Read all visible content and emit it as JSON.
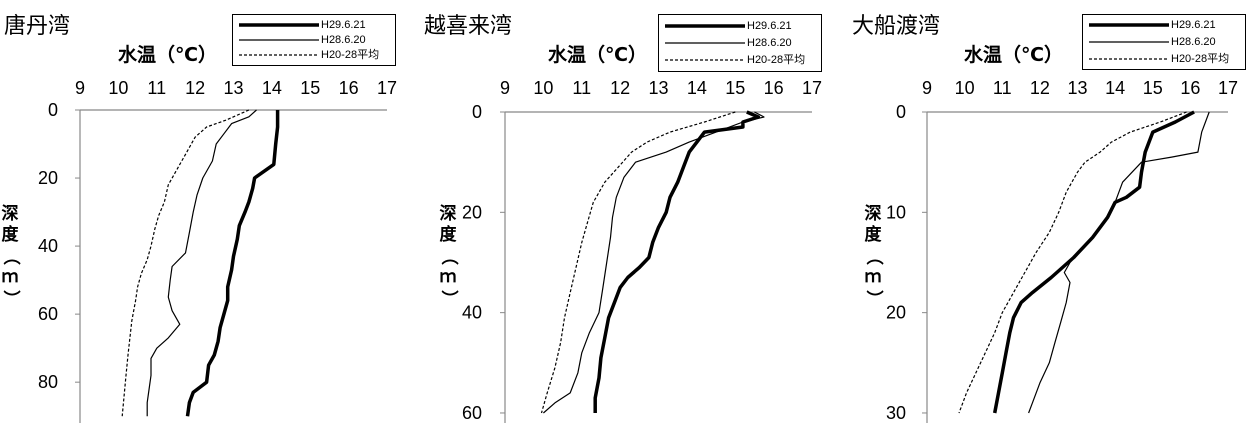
{
  "chart_data": [
    {
      "type": "line",
      "title": "唐丹湾",
      "xlabel": "水温（℃）",
      "ylabel": "深度（ｍ）",
      "xlim": [
        9,
        17
      ],
      "ylim": [
        0,
        90
      ],
      "y_inverted": true,
      "x_ticks": [
        "9",
        "10",
        "11",
        "12",
        "13",
        "14",
        "15",
        "16",
        "17"
      ],
      "y_ticks": [
        "0",
        "20",
        "40",
        "60",
        "80"
      ],
      "legend": [
        "H29.6.21",
        "H28.6.20",
        "H20-28平均"
      ],
      "legend_position": "top-right",
      "series": [
        {
          "name": "H29.6.21",
          "style": "thick",
          "points": [
            [
              14.15,
              0
            ],
            [
              14.15,
              5
            ],
            [
              14.1,
              10
            ],
            [
              14.05,
              16
            ],
            [
              13.55,
              20
            ],
            [
              13.5,
              23
            ],
            [
              13.4,
              27
            ],
            [
              13.3,
              30
            ],
            [
              13.15,
              34
            ],
            [
              13.1,
              38
            ],
            [
              13.0,
              43
            ],
            [
              12.95,
              47
            ],
            [
              12.85,
              52
            ],
            [
              12.85,
              56
            ],
            [
              12.75,
              60
            ],
            [
              12.65,
              64
            ],
            [
              12.6,
              68
            ],
            [
              12.5,
              72
            ],
            [
              12.35,
              75
            ],
            [
              12.3,
              80
            ],
            [
              11.95,
              83
            ],
            [
              11.85,
              86
            ],
            [
              11.8,
              90
            ]
          ]
        },
        {
          "name": "H28.6.20",
          "style": "thin",
          "points": [
            [
              13.6,
              0
            ],
            [
              13.4,
              2
            ],
            [
              12.95,
              4
            ],
            [
              12.75,
              7
            ],
            [
              12.55,
              10
            ],
            [
              12.45,
              15
            ],
            [
              12.2,
              20
            ],
            [
              12.05,
              25
            ],
            [
              11.95,
              30
            ],
            [
              11.85,
              36
            ],
            [
              11.75,
              42
            ],
            [
              11.4,
              46
            ],
            [
              11.35,
              50
            ],
            [
              11.3,
              55
            ],
            [
              11.4,
              59
            ],
            [
              11.6,
              63
            ],
            [
              11.3,
              67
            ],
            [
              11.0,
              70
            ],
            [
              10.85,
              73
            ],
            [
              10.85,
              78
            ],
            [
              10.8,
              82
            ],
            [
              10.75,
              86
            ],
            [
              10.75,
              90
            ]
          ]
        },
        {
          "name": "H20-28平均",
          "style": "dashed",
          "points": [
            [
              13.4,
              0
            ],
            [
              12.8,
              3
            ],
            [
              12.3,
              5
            ],
            [
              12.0,
              8
            ],
            [
              11.8,
              12
            ],
            [
              11.55,
              17
            ],
            [
              11.3,
              22
            ],
            [
              11.2,
              27
            ],
            [
              11.05,
              31
            ],
            [
              10.95,
              35
            ],
            [
              10.85,
              40
            ],
            [
              10.75,
              44
            ],
            [
              10.6,
              48
            ],
            [
              10.5,
              52
            ],
            [
              10.45,
              56
            ],
            [
              10.35,
              62
            ],
            [
              10.3,
              67
            ],
            [
              10.25,
              72
            ],
            [
              10.2,
              78
            ],
            [
              10.15,
              84
            ],
            [
              10.1,
              90
            ]
          ]
        }
      ]
    },
    {
      "type": "line",
      "title": "越喜来湾",
      "xlabel": "水温（℃）",
      "ylabel": "深度（ｍ）",
      "xlim": [
        9,
        17
      ],
      "ylim": [
        0,
        60
      ],
      "y_inverted": true,
      "x_ticks": [
        "9",
        "10",
        "11",
        "12",
        "13",
        "14",
        "15",
        "16",
        "17"
      ],
      "y_ticks": [
        "0",
        "20",
        "40",
        "60"
      ],
      "legend": [
        "H29.6.21",
        "H28.6.20",
        "H20-28平均"
      ],
      "legend_position": "top-right",
      "series": [
        {
          "name": "H29.6.21",
          "style": "thick",
          "points": [
            [
              15.3,
              0
            ],
            [
              15.6,
              1
            ],
            [
              15.2,
              2
            ],
            [
              15.2,
              3
            ],
            [
              14.2,
              4
            ],
            [
              14.0,
              6
            ],
            [
              13.8,
              8
            ],
            [
              13.65,
              11
            ],
            [
              13.5,
              14
            ],
            [
              13.3,
              17
            ],
            [
              13.2,
              20
            ],
            [
              13.0,
              23
            ],
            [
              12.85,
              26
            ],
            [
              12.75,
              29
            ],
            [
              12.5,
              31
            ],
            [
              12.2,
              33
            ],
            [
              12.0,
              35
            ],
            [
              11.85,
              38
            ],
            [
              11.7,
              41
            ],
            [
              11.6,
              45
            ],
            [
              11.5,
              49
            ],
            [
              11.45,
              53
            ],
            [
              11.35,
              57
            ],
            [
              11.35,
              60
            ]
          ]
        },
        {
          "name": "H28.6.20",
          "style": "thin",
          "points": [
            [
              15.5,
              0
            ],
            [
              15.75,
              1
            ],
            [
              15.2,
              2
            ],
            [
              14.5,
              4
            ],
            [
              13.8,
              6
            ],
            [
              13.2,
              8
            ],
            [
              12.4,
              10
            ],
            [
              12.1,
              13
            ],
            [
              11.9,
              17
            ],
            [
              11.8,
              21
            ],
            [
              11.75,
              25
            ],
            [
              11.65,
              30
            ],
            [
              11.55,
              35
            ],
            [
              11.45,
              40
            ],
            [
              11.2,
              44
            ],
            [
              11.0,
              48
            ],
            [
              10.9,
              52
            ],
            [
              10.7,
              56
            ],
            [
              10.3,
              58
            ],
            [
              10.0,
              60
            ]
          ]
        },
        {
          "name": "H20-28平均",
          "style": "dashed",
          "points": [
            [
              15.0,
              0
            ],
            [
              14.2,
              2
            ],
            [
              13.3,
              4
            ],
            [
              12.7,
              6
            ],
            [
              12.3,
              8
            ],
            [
              11.95,
              11
            ],
            [
              11.6,
              14
            ],
            [
              11.3,
              18
            ],
            [
              11.15,
              22
            ],
            [
              11.0,
              26
            ],
            [
              10.85,
              31
            ],
            [
              10.7,
              36
            ],
            [
              10.55,
              41
            ],
            [
              10.45,
              46
            ],
            [
              10.3,
              51
            ],
            [
              10.1,
              56
            ],
            [
              9.95,
              60
            ]
          ]
        }
      ]
    },
    {
      "type": "line",
      "title": "大船渡湾",
      "xlabel": "水温（℃）",
      "ylabel": "深度（ｍ）",
      "xlim": [
        9,
        17
      ],
      "ylim": [
        0,
        30
      ],
      "y_inverted": true,
      "x_ticks": [
        "9",
        "10",
        "11",
        "12",
        "13",
        "14",
        "15",
        "16",
        "17"
      ],
      "y_ticks": [
        "0",
        "10",
        "20",
        "30"
      ],
      "legend": [
        "H29.6.21",
        "H28.6.20",
        "H20-28平均"
      ],
      "legend_position": "top-right",
      "series": [
        {
          "name": "H29.6.21",
          "style": "thick",
          "points": [
            [
              16.1,
              0
            ],
            [
              15.6,
              1
            ],
            [
              15.0,
              2
            ],
            [
              14.8,
              4
            ],
            [
              14.7,
              6
            ],
            [
              14.65,
              7.5
            ],
            [
              14.3,
              8.5
            ],
            [
              14.0,
              9
            ],
            [
              13.8,
              10.5
            ],
            [
              13.4,
              12.5
            ],
            [
              12.9,
              14.5
            ],
            [
              12.3,
              16.5
            ],
            [
              11.8,
              18
            ],
            [
              11.5,
              19
            ],
            [
              11.3,
              20.5
            ],
            [
              11.2,
              22
            ],
            [
              11.1,
              24
            ],
            [
              11.0,
              26
            ],
            [
              10.9,
              28
            ],
            [
              10.8,
              30
            ]
          ]
        },
        {
          "name": "H28.6.20",
          "style": "thin",
          "points": [
            [
              16.5,
              0
            ],
            [
              16.3,
              2
            ],
            [
              16.2,
              4
            ],
            [
              15.5,
              4.5
            ],
            [
              14.7,
              5
            ],
            [
              14.2,
              7
            ],
            [
              14.0,
              9
            ],
            [
              13.7,
              11
            ],
            [
              13.3,
              13
            ],
            [
              12.8,
              15
            ],
            [
              12.65,
              16
            ],
            [
              12.8,
              17
            ],
            [
              12.7,
              19
            ],
            [
              12.55,
              21
            ],
            [
              12.4,
              23
            ],
            [
              12.25,
              25
            ],
            [
              12.0,
              27
            ],
            [
              11.8,
              29
            ],
            [
              11.7,
              30
            ]
          ]
        },
        {
          "name": "H20-28平均",
          "style": "dashed",
          "points": [
            [
              15.9,
              0
            ],
            [
              15.2,
              1
            ],
            [
              14.4,
              2
            ],
            [
              13.9,
              3
            ],
            [
              13.6,
              4
            ],
            [
              13.2,
              5
            ],
            [
              13.0,
              6
            ],
            [
              12.7,
              8
            ],
            [
              12.5,
              10
            ],
            [
              12.25,
              12
            ],
            [
              11.9,
              14
            ],
            [
              11.6,
              16
            ],
            [
              11.3,
              18
            ],
            [
              11.0,
              20
            ],
            [
              10.8,
              22
            ],
            [
              10.55,
              24
            ],
            [
              10.3,
              26
            ],
            [
              10.05,
              28
            ],
            [
              9.85,
              30
            ]
          ]
        }
      ]
    }
  ]
}
